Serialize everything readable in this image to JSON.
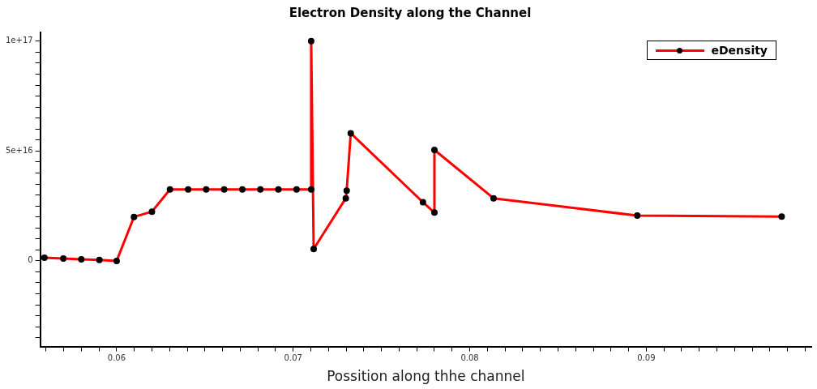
{
  "chart_data": {
    "type": "line",
    "title": "Electron Density along the Channel",
    "xlabel": "Possition along thhe channel",
    "legend": "top right",
    "marker": "circle",
    "line_style": "solid",
    "grid": false,
    "x": [
      0.05591,
      0.05698,
      0.058,
      0.05902,
      0.06,
      0.06098,
      0.062,
      0.06302,
      0.06405,
      0.06507,
      0.06609,
      0.06712,
      0.06814,
      0.06916,
      0.07019,
      0.07102,
      0.07102,
      0.07116,
      0.07298,
      0.07303,
      0.07326,
      0.07735,
      0.078,
      0.078,
      0.08135,
      0.08949,
      0.09767
    ],
    "series": [
      {
        "name": "eDensity",
        "color": "#ff0000",
        "values": [
          1400000000000000.0,
          1100000000000000.0,
          700000000000000.0,
          400000000000000.0,
          0,
          2e+16,
          2.24e+16,
          3.25e+16,
          3.25e+16,
          3.25e+16,
          3.25e+16,
          3.25e+16,
          3.25e+16,
          3.25e+16,
          3.25e+16,
          3.25e+16,
          1e+17,
          5400000000000000.0,
          2.85e+16,
          3.2e+16,
          5.81e+16,
          2.67e+16,
          2.2e+16,
          5.05e+16,
          2.85e+16,
          2.06e+16,
          2.02e+16
        ]
      }
    ],
    "xlim": [
      0.05567,
      0.09935
    ],
    "xticks": [
      {
        "value": 0.056,
        "label": null
      },
      {
        "value": 0.057,
        "label": null
      },
      {
        "value": 0.058,
        "label": null
      },
      {
        "value": 0.059,
        "label": null
      },
      {
        "value": 0.06,
        "label": "0.06"
      },
      {
        "value": 0.061,
        "label": null
      },
      {
        "value": 0.062,
        "label": null
      },
      {
        "value": 0.063,
        "label": null
      },
      {
        "value": 0.064,
        "label": null
      },
      {
        "value": 0.065,
        "label": null
      },
      {
        "value": 0.066,
        "label": null
      },
      {
        "value": 0.067,
        "label": null
      },
      {
        "value": 0.068,
        "label": null
      },
      {
        "value": 0.069,
        "label": null
      },
      {
        "value": 0.07,
        "label": "0.07"
      },
      {
        "value": 0.071,
        "label": null
      },
      {
        "value": 0.072,
        "label": null
      },
      {
        "value": 0.073,
        "label": null
      },
      {
        "value": 0.074,
        "label": null
      },
      {
        "value": 0.075,
        "label": null
      },
      {
        "value": 0.076,
        "label": null
      },
      {
        "value": 0.077,
        "label": null
      },
      {
        "value": 0.078,
        "label": null
      },
      {
        "value": 0.079,
        "label": null
      },
      {
        "value": 0.08,
        "label": "0.08"
      },
      {
        "value": 0.081,
        "label": null
      },
      {
        "value": 0.082,
        "label": null
      },
      {
        "value": 0.083,
        "label": null
      },
      {
        "value": 0.084,
        "label": null
      },
      {
        "value": 0.085,
        "label": null
      },
      {
        "value": 0.086,
        "label": null
      },
      {
        "value": 0.087,
        "label": null
      },
      {
        "value": 0.088,
        "label": null
      },
      {
        "value": 0.089,
        "label": null
      },
      {
        "value": 0.09,
        "label": "0.09"
      },
      {
        "value": 0.091,
        "label": null
      },
      {
        "value": 0.092,
        "label": null
      },
      {
        "value": 0.093,
        "label": null
      },
      {
        "value": 0.094,
        "label": null
      },
      {
        "value": 0.095,
        "label": null
      },
      {
        "value": 0.096,
        "label": null
      },
      {
        "value": 0.097,
        "label": null
      },
      {
        "value": 0.098,
        "label": null
      },
      {
        "value": 0.099,
        "label": null
      }
    ],
    "ylim": [
      -3.9e+16,
      1.04e+17
    ],
    "yticks": [
      {
        "value": -3.5e+16,
        "label": null
      },
      {
        "value": -3e+16,
        "label": null
      },
      {
        "value": -2.5e+16,
        "label": null
      },
      {
        "value": -2e+16,
        "label": null
      },
      {
        "value": -1.5e+16,
        "label": null
      },
      {
        "value": -1e+16,
        "label": null
      },
      {
        "value": -5000000000000000.0,
        "label": null
      },
      {
        "value": 0,
        "label": "0"
      },
      {
        "value": 5000000000000000.0,
        "label": null
      },
      {
        "value": 1e+16,
        "label": null
      },
      {
        "value": 1.5e+16,
        "label": null
      },
      {
        "value": 2e+16,
        "label": null
      },
      {
        "value": 2.5e+16,
        "label": null
      },
      {
        "value": 3e+16,
        "label": null
      },
      {
        "value": 3.5e+16,
        "label": null
      },
      {
        "value": 4e+16,
        "label": null
      },
      {
        "value": 4.5e+16,
        "label": null
      },
      {
        "value": 5e+16,
        "label": "5e+16"
      },
      {
        "value": 5.5e+16,
        "label": null
      },
      {
        "value": 6e+16,
        "label": null
      },
      {
        "value": 6.5e+16,
        "label": null
      },
      {
        "value": 7e+16,
        "label": null
      },
      {
        "value": 7.5e+16,
        "label": null
      },
      {
        "value": 8e+16,
        "label": null
      },
      {
        "value": 8.5e+16,
        "label": null
      },
      {
        "value": 9e+16,
        "label": null
      },
      {
        "value": 9.5e+16,
        "label": null
      },
      {
        "value": 1e+17,
        "label": "1e+17"
      }
    ]
  }
}
